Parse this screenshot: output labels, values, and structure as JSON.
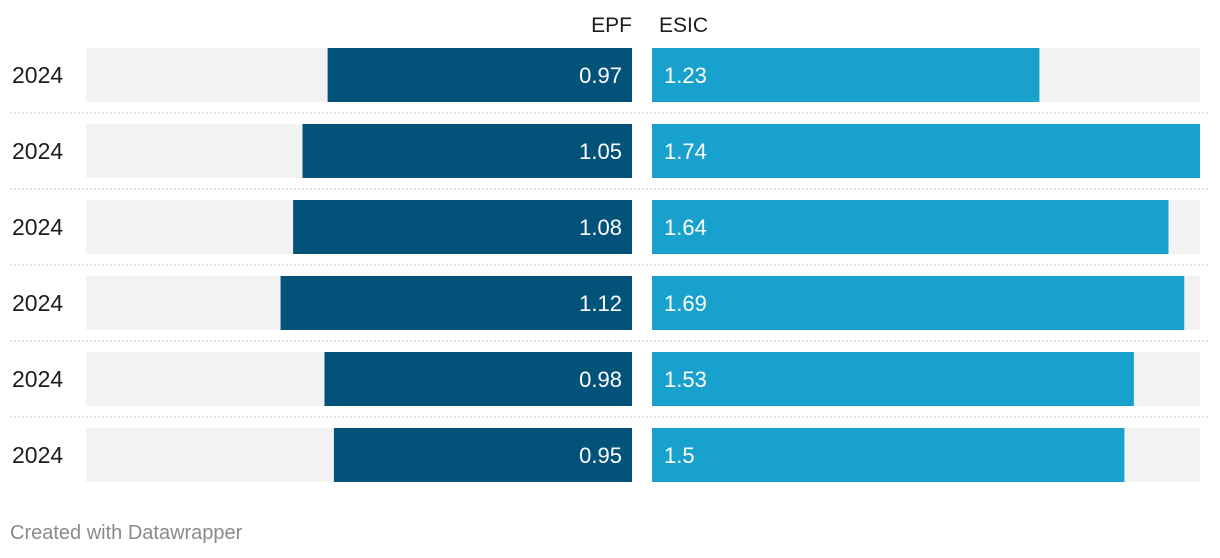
{
  "chart_data": {
    "type": "bar",
    "categories": [
      "2024",
      "2024",
      "2024",
      "2024",
      "2024",
      "2024"
    ],
    "series": [
      {
        "name": "EPF",
        "values": [
          0.97,
          1.05,
          1.08,
          1.12,
          0.98,
          0.95
        ],
        "color": "#03527a",
        "direction": "left"
      },
      {
        "name": "ESIC",
        "values": [
          1.23,
          1.74,
          1.64,
          1.69,
          1.53,
          1.5
        ],
        "color": "#18a1cd",
        "direction": "right"
      }
    ],
    "value_labels": {
      "EPF": [
        "0.97",
        "1.05",
        "1.08",
        "1.12",
        "0.98",
        "0.95"
      ],
      "ESIC": [
        "1.23",
        "1.74",
        "1.64",
        "1.69",
        "1.53",
        "1.5"
      ]
    },
    "xlim": [
      0,
      1.74
    ],
    "background_bar_color": "#f2f2f2",
    "separator_color": "#c9c9c9",
    "grid": false,
    "legend": "column headers at top"
  },
  "footer": {
    "credit": "Created with Datawrapper"
  }
}
